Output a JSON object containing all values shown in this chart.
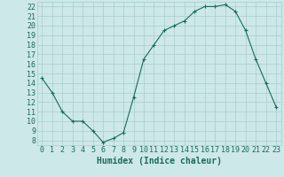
{
  "x": [
    0,
    1,
    2,
    3,
    4,
    5,
    6,
    7,
    8,
    9,
    10,
    11,
    12,
    13,
    14,
    15,
    16,
    17,
    18,
    19,
    20,
    21,
    22,
    23
  ],
  "y": [
    14.5,
    13.0,
    11.0,
    10.0,
    10.0,
    9.0,
    7.8,
    8.2,
    8.8,
    12.5,
    16.5,
    18.0,
    19.5,
    20.0,
    20.5,
    21.5,
    22.0,
    22.0,
    22.2,
    21.5,
    19.5,
    16.5,
    14.0,
    11.5
  ],
  "xlabel": "Humidex (Indice chaleur)",
  "ylim": [
    7.5,
    22.5
  ],
  "xlim": [
    -0.5,
    23.5
  ],
  "yticks": [
    8,
    9,
    10,
    11,
    12,
    13,
    14,
    15,
    16,
    17,
    18,
    19,
    20,
    21,
    22
  ],
  "xticks": [
    0,
    1,
    2,
    3,
    4,
    5,
    6,
    7,
    8,
    9,
    10,
    11,
    12,
    13,
    14,
    15,
    16,
    17,
    18,
    19,
    20,
    21,
    22,
    23
  ],
  "line_color": "#1a6b5a",
  "marker_color": "#1a6b5a",
  "bg_color": "#cce8e8",
  "grid_color": "#aacccc",
  "tick_color": "#1a6b5a",
  "label_color": "#1a6b5a",
  "font_size": 6,
  "xlabel_fontsize": 7
}
